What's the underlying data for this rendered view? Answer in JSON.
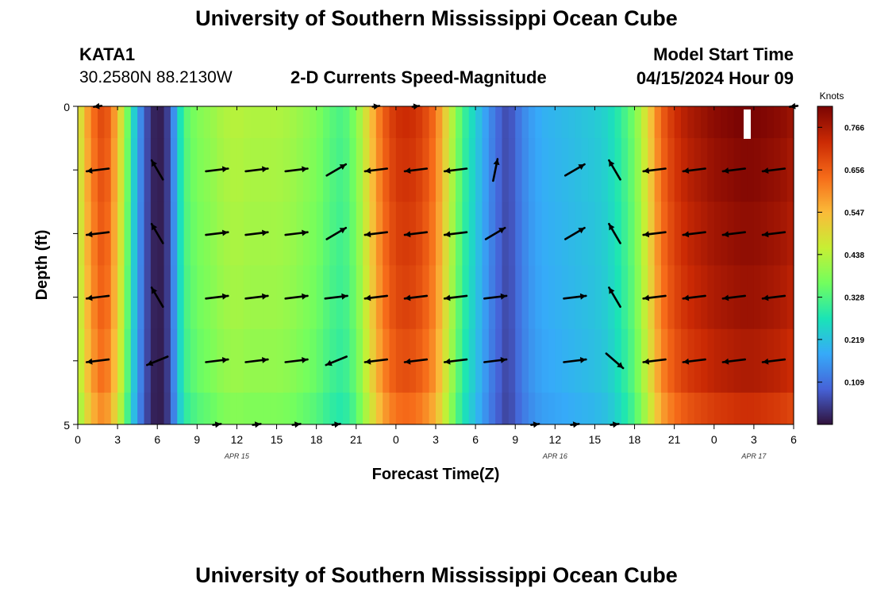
{
  "header": {
    "title": "University of Southern Mississippi Ocean Cube",
    "station_id": "KATA1",
    "station_coords": "30.2580N  88.2130W",
    "plot_title": "2-D Currents Speed-Magnitude",
    "model_start_label": "Model Start Time",
    "model_start_value": "04/15/2024 Hour 09"
  },
  "footer": {
    "title": "University of Southern Mississippi Ocean Cube"
  },
  "colors": {
    "scale": [
      "#30123b",
      "#4662d7",
      "#36aaf9",
      "#1ae4b6",
      "#72fe5e",
      "#c7ef34",
      "#fabb39",
      "#f66b19",
      "#cb2a04",
      "#7a0403"
    ],
    "arrow": "#000000"
  },
  "chart_data": {
    "type": "heatmap",
    "xlabel": "Forecast Time(Z)",
    "ylabel": "Depth (ft)",
    "ylim": [
      0,
      5
    ],
    "y_ticks": [
      "0",
      "5"
    ],
    "x_tick_labels": [
      "0",
      "3",
      "6",
      "9",
      "12",
      "15",
      "18",
      "21",
      "0",
      "3",
      "6",
      "9",
      "12",
      "15",
      "18",
      "21",
      "0",
      "3",
      "6"
    ],
    "date_labels": [
      {
        "label": "APR 15",
        "hour": 12
      },
      {
        "label": "APR 16",
        "hour": 36
      },
      {
        "label": "APR 17",
        "hour": 51
      }
    ],
    "time_range_hours": [
      0,
      54
    ],
    "depth_layers_ft": [
      0.25,
      1.0,
      2.0,
      3.0,
      4.0,
      4.75
    ],
    "time_profile_knots": [
      [
        0,
        0.45
      ],
      [
        1,
        0.62
      ],
      [
        2,
        0.7
      ],
      [
        3,
        0.55
      ],
      [
        4,
        0.3
      ],
      [
        4.5,
        0.18
      ],
      [
        5,
        0.1
      ],
      [
        5.5,
        0.03
      ],
      [
        6,
        0.01
      ],
      [
        6.5,
        0.02
      ],
      [
        7,
        0.08
      ],
      [
        7.5,
        0.22
      ],
      [
        8,
        0.33
      ],
      [
        9,
        0.38
      ],
      [
        10,
        0.4
      ],
      [
        11,
        0.43
      ],
      [
        12,
        0.44
      ],
      [
        13,
        0.43
      ],
      [
        14,
        0.43
      ],
      [
        15,
        0.43
      ],
      [
        16,
        0.42
      ],
      [
        17,
        0.4
      ],
      [
        18,
        0.38
      ],
      [
        19,
        0.34
      ],
      [
        20,
        0.32
      ],
      [
        21,
        0.38
      ],
      [
        22,
        0.52
      ],
      [
        23,
        0.65
      ],
      [
        24,
        0.72
      ],
      [
        25,
        0.73
      ],
      [
        26,
        0.7
      ],
      [
        27,
        0.63
      ],
      [
        28,
        0.47
      ],
      [
        29,
        0.32
      ],
      [
        30,
        0.24
      ],
      [
        31,
        0.15
      ],
      [
        32,
        0.08
      ],
      [
        32.5,
        0.06
      ],
      [
        33,
        0.1
      ],
      [
        34,
        0.16
      ],
      [
        35,
        0.19
      ],
      [
        36,
        0.2
      ],
      [
        37,
        0.21
      ],
      [
        38,
        0.22
      ],
      [
        39,
        0.23
      ],
      [
        40,
        0.25
      ],
      [
        41,
        0.3
      ],
      [
        42,
        0.37
      ],
      [
        43,
        0.5
      ],
      [
        44,
        0.65
      ],
      [
        45,
        0.72
      ],
      [
        46,
        0.76
      ],
      [
        47,
        0.78
      ],
      [
        48,
        0.8
      ],
      [
        49,
        0.81
      ],
      [
        50,
        0.82
      ],
      [
        51,
        0.82
      ],
      [
        52,
        0.81
      ],
      [
        53,
        0.8
      ],
      [
        54,
        0.78
      ]
    ],
    "colorbar": {
      "unit": "Knots",
      "range": [
        0.0,
        0.82
      ],
      "ticks": [
        "0.109",
        "0.219",
        "0.328",
        "0.438",
        "0.547",
        "0.656",
        "0.766"
      ]
    },
    "vector_columns_hours": [
      1.5,
      6,
      10.5,
      13.5,
      16.5,
      19.5,
      22.5,
      25.5,
      28.5,
      31.5,
      34.5,
      37.5,
      40.5,
      43.5,
      46.5,
      49.5,
      52.5,
      54
    ],
    "vector_depths_ft": [
      0,
      1,
      2,
      3,
      4,
      5
    ],
    "current_vectors": [
      {
        "t": 1.5,
        "d": 0,
        "dir": "W",
        "len": 0.35
      },
      {
        "t": 22.5,
        "d": 0,
        "dir": "E",
        "len": 0.3
      },
      {
        "t": 25.5,
        "d": 0,
        "dir": "E",
        "len": 0.3
      },
      {
        "t": 54,
        "d": 0,
        "dir": "W",
        "len": 0.35
      },
      {
        "t": 1.5,
        "d": 1,
        "dir": "W",
        "len": 1
      },
      {
        "t": 6,
        "d": 1,
        "dir": "NW",
        "len": 1
      },
      {
        "t": 10.5,
        "d": 1,
        "dir": "E",
        "len": 1
      },
      {
        "t": 13.5,
        "d": 1,
        "dir": "E",
        "len": 1
      },
      {
        "t": 16.5,
        "d": 1,
        "dir": "E",
        "len": 1
      },
      {
        "t": 19.5,
        "d": 1,
        "dir": "NE",
        "len": 1
      },
      {
        "t": 22.5,
        "d": 1,
        "dir": "W",
        "len": 1
      },
      {
        "t": 25.5,
        "d": 1,
        "dir": "W",
        "len": 1
      },
      {
        "t": 28.5,
        "d": 1,
        "dir": "W",
        "len": 1
      },
      {
        "t": 31.5,
        "d": 1,
        "dir": "N",
        "len": 1
      },
      {
        "t": 37.5,
        "d": 1,
        "dir": "NE",
        "len": 1
      },
      {
        "t": 40.5,
        "d": 1,
        "dir": "NW",
        "len": 1
      },
      {
        "t": 43.5,
        "d": 1,
        "dir": "W",
        "len": 1
      },
      {
        "t": 46.5,
        "d": 1,
        "dir": "W",
        "len": 1
      },
      {
        "t": 49.5,
        "d": 1,
        "dir": "W",
        "len": 1
      },
      {
        "t": 52.5,
        "d": 1,
        "dir": "W",
        "len": 1
      },
      {
        "t": 1.5,
        "d": 2,
        "dir": "W",
        "len": 1
      },
      {
        "t": 6,
        "d": 2,
        "dir": "NW",
        "len": 1
      },
      {
        "t": 10.5,
        "d": 2,
        "dir": "E",
        "len": 1
      },
      {
        "t": 13.5,
        "d": 2,
        "dir": "E",
        "len": 1
      },
      {
        "t": 16.5,
        "d": 2,
        "dir": "E",
        "len": 1
      },
      {
        "t": 19.5,
        "d": 2,
        "dir": "NE",
        "len": 1
      },
      {
        "t": 22.5,
        "d": 2,
        "dir": "W",
        "len": 1
      },
      {
        "t": 25.5,
        "d": 2,
        "dir": "W",
        "len": 1
      },
      {
        "t": 28.5,
        "d": 2,
        "dir": "W",
        "len": 1
      },
      {
        "t": 31.5,
        "d": 2,
        "dir": "NE",
        "len": 1
      },
      {
        "t": 37.5,
        "d": 2,
        "dir": "NE",
        "len": 1
      },
      {
        "t": 40.5,
        "d": 2,
        "dir": "NW",
        "len": 1
      },
      {
        "t": 43.5,
        "d": 2,
        "dir": "W",
        "len": 1
      },
      {
        "t": 46.5,
        "d": 2,
        "dir": "W",
        "len": 1
      },
      {
        "t": 49.5,
        "d": 2,
        "dir": "W",
        "len": 1
      },
      {
        "t": 52.5,
        "d": 2,
        "dir": "W",
        "len": 1
      },
      {
        "t": 1.5,
        "d": 3,
        "dir": "W",
        "len": 1
      },
      {
        "t": 6,
        "d": 3,
        "dir": "NW",
        "len": 1
      },
      {
        "t": 10.5,
        "d": 3,
        "dir": "E",
        "len": 1
      },
      {
        "t": 13.5,
        "d": 3,
        "dir": "E",
        "len": 1
      },
      {
        "t": 16.5,
        "d": 3,
        "dir": "E",
        "len": 1
      },
      {
        "t": 19.5,
        "d": 3,
        "dir": "E",
        "len": 1
      },
      {
        "t": 22.5,
        "d": 3,
        "dir": "W",
        "len": 1
      },
      {
        "t": 25.5,
        "d": 3,
        "dir": "W",
        "len": 1
      },
      {
        "t": 28.5,
        "d": 3,
        "dir": "W",
        "len": 1
      },
      {
        "t": 31.5,
        "d": 3,
        "dir": "E",
        "len": 1
      },
      {
        "t": 37.5,
        "d": 3,
        "dir": "E",
        "len": 1
      },
      {
        "t": 40.5,
        "d": 3,
        "dir": "NW",
        "len": 1
      },
      {
        "t": 43.5,
        "d": 3,
        "dir": "W",
        "len": 1
      },
      {
        "t": 46.5,
        "d": 3,
        "dir": "W",
        "len": 1
      },
      {
        "t": 49.5,
        "d": 3,
        "dir": "W",
        "len": 1
      },
      {
        "t": 52.5,
        "d": 3,
        "dir": "W",
        "len": 1
      },
      {
        "t": 1.5,
        "d": 4,
        "dir": "W",
        "len": 1
      },
      {
        "t": 6,
        "d": 4,
        "dir": "SW",
        "len": 1
      },
      {
        "t": 10.5,
        "d": 4,
        "dir": "E",
        "len": 1
      },
      {
        "t": 13.5,
        "d": 4,
        "dir": "E",
        "len": 1
      },
      {
        "t": 16.5,
        "d": 4,
        "dir": "E",
        "len": 1
      },
      {
        "t": 19.5,
        "d": 4,
        "dir": "SW",
        "len": 1
      },
      {
        "t": 22.5,
        "d": 4,
        "dir": "W",
        "len": 1
      },
      {
        "t": 25.5,
        "d": 4,
        "dir": "W",
        "len": 1
      },
      {
        "t": 28.5,
        "d": 4,
        "dir": "W",
        "len": 1
      },
      {
        "t": 31.5,
        "d": 4,
        "dir": "E",
        "len": 1
      },
      {
        "t": 37.5,
        "d": 4,
        "dir": "E",
        "len": 1
      },
      {
        "t": 40.5,
        "d": 4,
        "dir": "SE",
        "len": 1
      },
      {
        "t": 43.5,
        "d": 4,
        "dir": "W",
        "len": 1
      },
      {
        "t": 46.5,
        "d": 4,
        "dir": "W",
        "len": 1
      },
      {
        "t": 49.5,
        "d": 4,
        "dir": "W",
        "len": 1
      },
      {
        "t": 52.5,
        "d": 4,
        "dir": "W",
        "len": 1
      },
      {
        "t": 10.5,
        "d": 5,
        "dir": "E",
        "len": 0.35
      },
      {
        "t": 13.5,
        "d": 5,
        "dir": "E",
        "len": 0.35
      },
      {
        "t": 16.5,
        "d": 5,
        "dir": "E",
        "len": 0.35
      },
      {
        "t": 19.5,
        "d": 5,
        "dir": "E",
        "len": 0.35
      },
      {
        "t": 34.5,
        "d": 5,
        "dir": "E",
        "len": 0.35
      },
      {
        "t": 37.5,
        "d": 5,
        "dir": "E",
        "len": 0.35
      },
      {
        "t": 40.5,
        "d": 5,
        "dir": "E",
        "len": 0.35
      }
    ]
  }
}
